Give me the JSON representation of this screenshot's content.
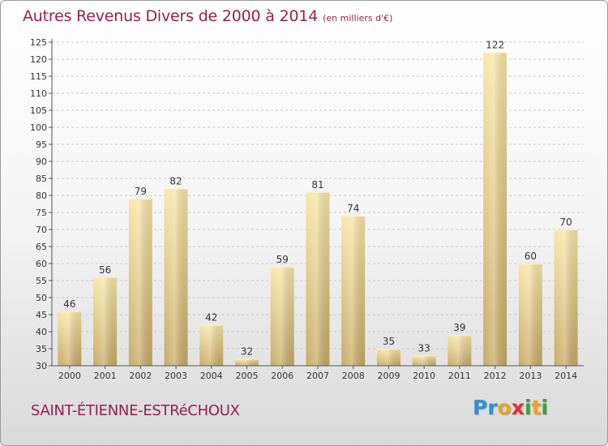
{
  "title": "Autres Revenus Divers de 2000 à 2014",
  "unit_note": "(en milliers d'€)",
  "commune": "SAINT-ÉTIENNE-ESTRéCHOUX",
  "logo": {
    "text": "Proxiti",
    "letters": [
      {
        "ch": "P",
        "color": "#2f8fd6"
      },
      {
        "ch": "r",
        "color": "#2f8fd6"
      },
      {
        "ch": "o",
        "color": "#f0a020"
      },
      {
        "ch": "x",
        "color": "#e03030"
      },
      {
        "ch": "i",
        "color": "#3aa040"
      },
      {
        "ch": "t",
        "color": "#f0a020"
      },
      {
        "ch": "i",
        "color": "#3aa040"
      }
    ]
  },
  "colors": {
    "accent": "#9b1d4e",
    "bar_light": "#f7e3a3",
    "bar_dark": "#c9ad68"
  },
  "chart_data": {
    "type": "bar",
    "categories": [
      "2000",
      "2001",
      "2002",
      "2003",
      "2004",
      "2005",
      "2006",
      "2007",
      "2008",
      "2009",
      "2010",
      "2011",
      "2012",
      "2013",
      "2014"
    ],
    "values": [
      46,
      56,
      79,
      82,
      42,
      32,
      59,
      81,
      74,
      35,
      33,
      39,
      122,
      60,
      70
    ],
    "ylim": [
      30,
      125
    ],
    "yticks": [
      30,
      35,
      40,
      45,
      50,
      55,
      60,
      65,
      70,
      75,
      80,
      85,
      90,
      95,
      100,
      105,
      110,
      115,
      120,
      125
    ],
    "grid": "dashed-horizontal",
    "legend": "none"
  }
}
